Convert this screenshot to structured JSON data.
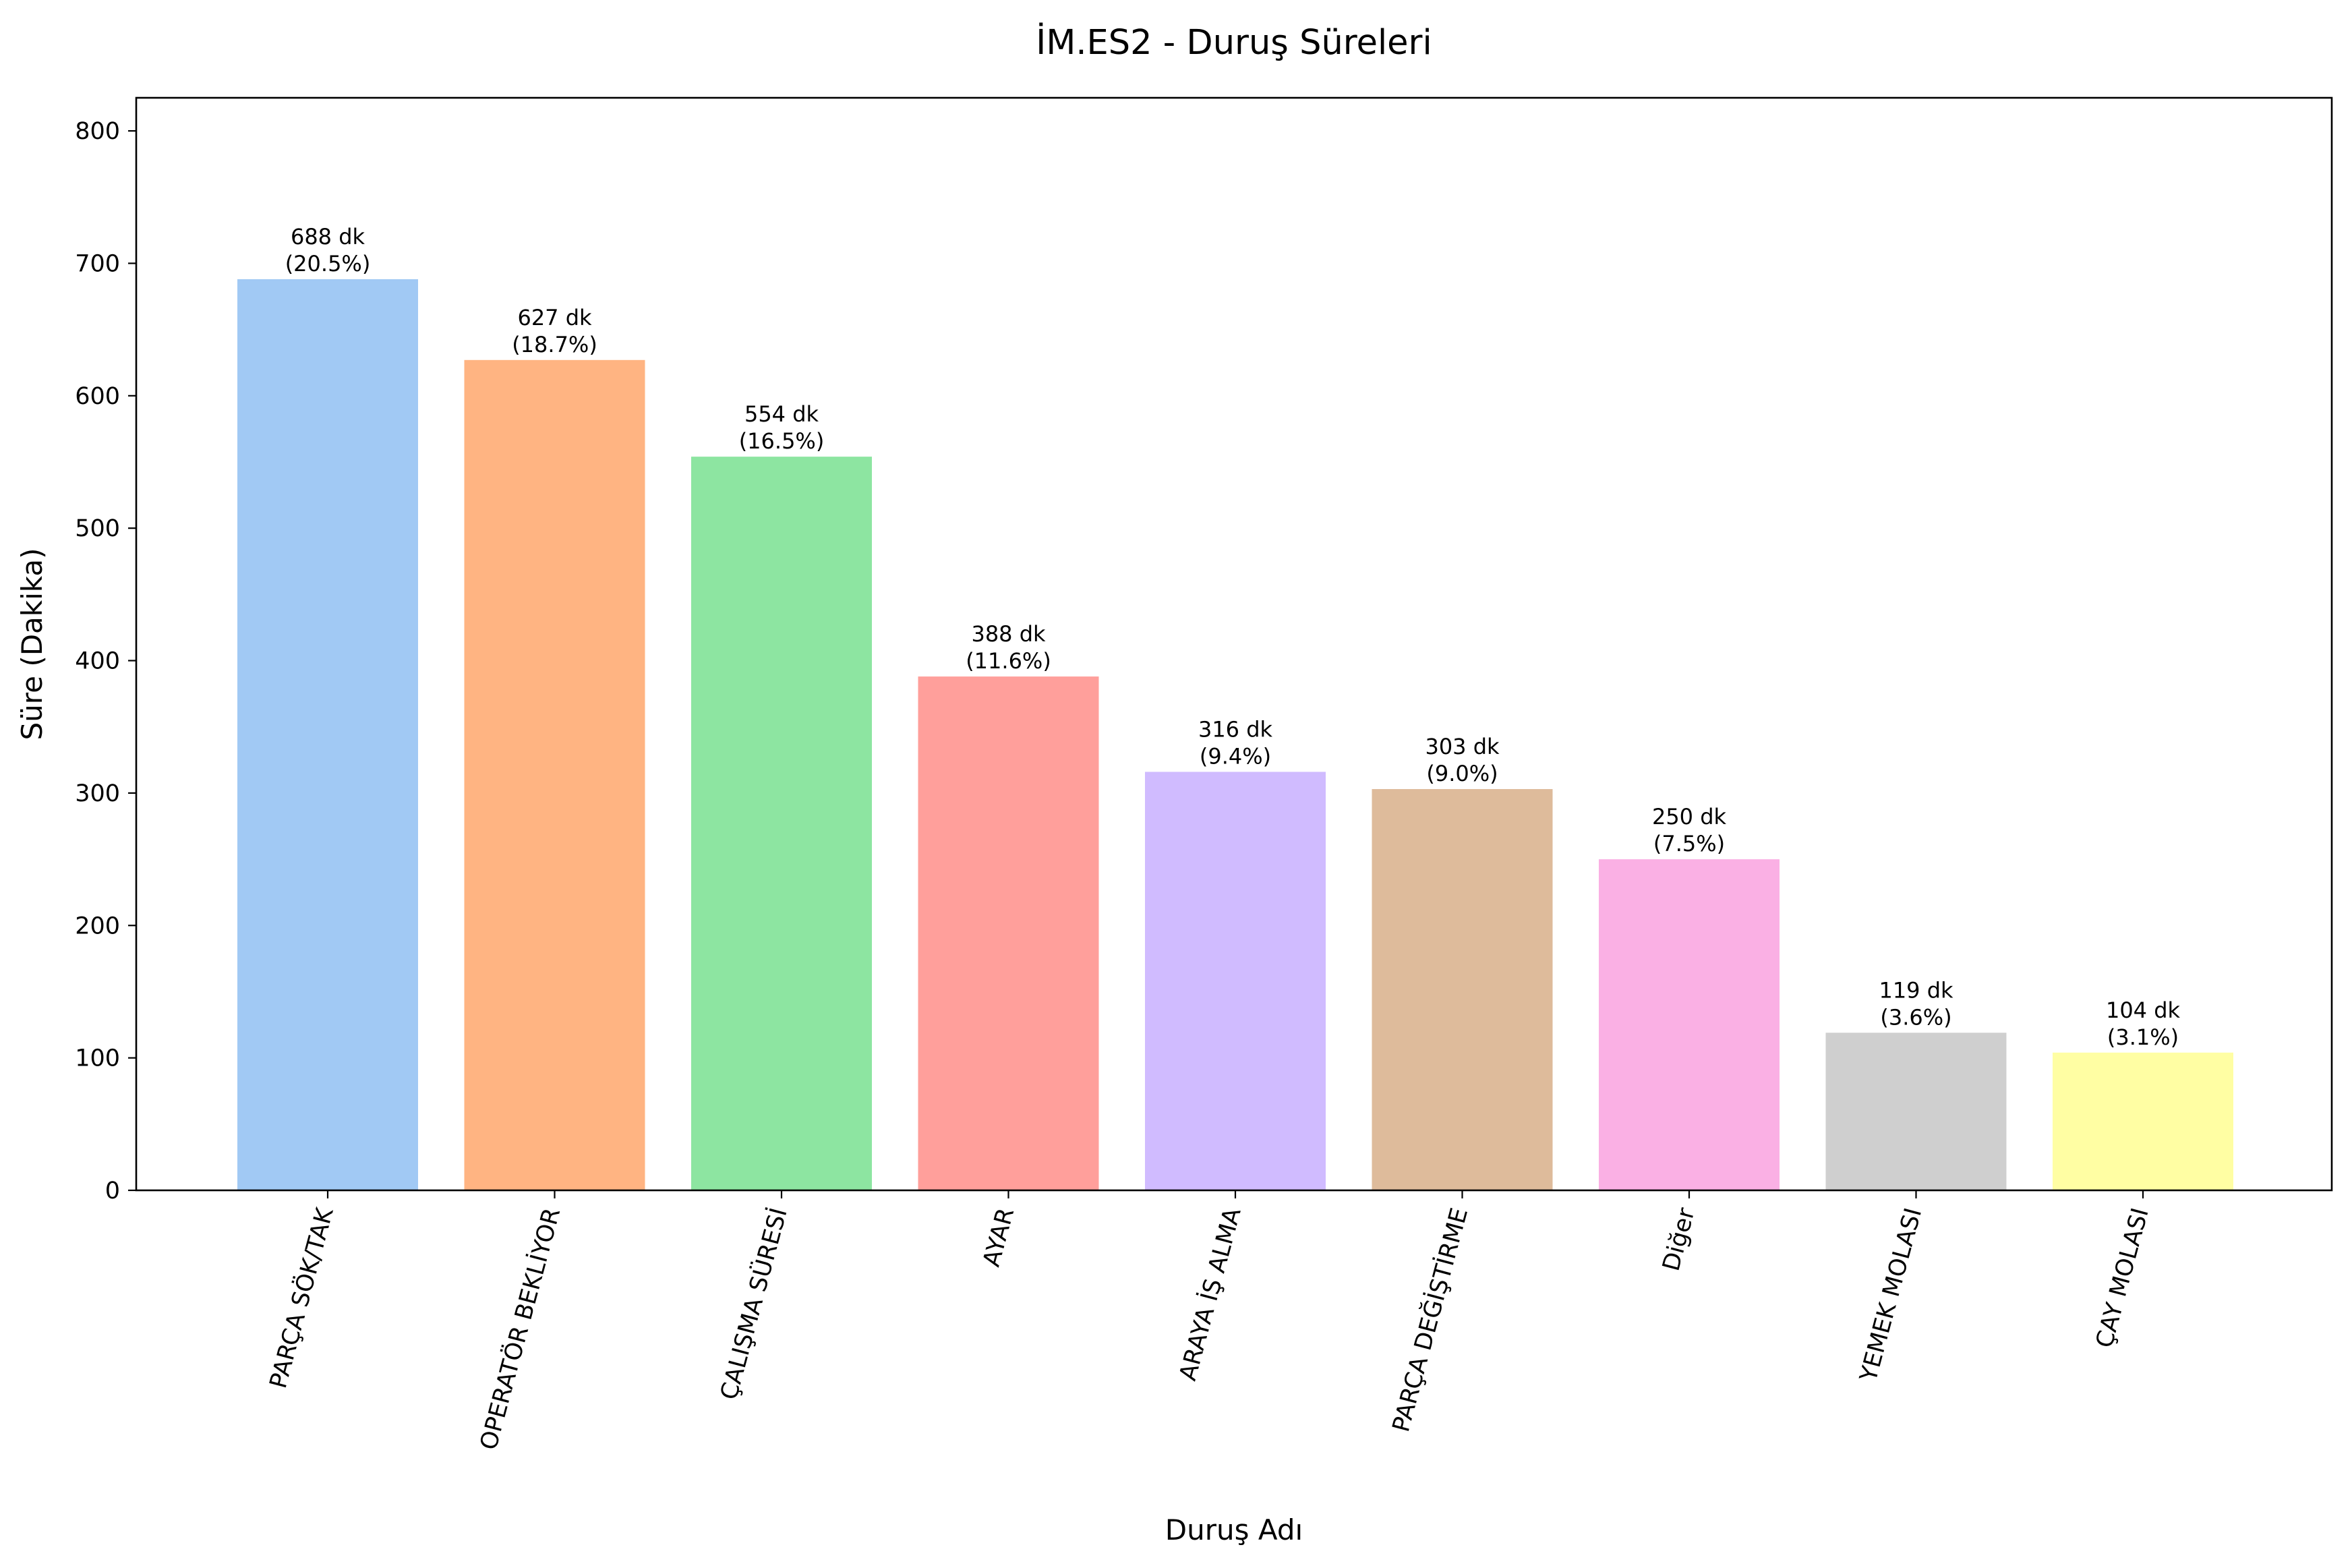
{
  "chart_data": {
    "type": "bar",
    "title": "İM.ES2 - Duruş Süreleri",
    "xlabel": "Duruş Adı",
    "ylabel": "Süre (Dakika)",
    "ylim": [
      0,
      825
    ],
    "yticks": [
      0,
      100,
      200,
      300,
      400,
      500,
      600,
      700,
      800
    ],
    "categories": [
      "PARÇA SÖK/TAK",
      "OPERATÖR BEKLİYOR",
      "ÇALIŞMA SÜRESİ",
      "AYAR",
      "ARAYA İŞ ALMA",
      "PARÇA DEĞİŞTİRME",
      "Diğer",
      "YEMEK MOLASI",
      "ÇAY MOLASI"
    ],
    "values": [
      688,
      627,
      554,
      388,
      316,
      303,
      250,
      119,
      104
    ],
    "value_labels": [
      "688 dk",
      "627 dk",
      "554 dk",
      "388 dk",
      "316 dk",
      "303 dk",
      "250 dk",
      "119 dk",
      "104 dk"
    ],
    "percent_labels": [
      "(20.5%)",
      "(18.7%)",
      "(16.5%)",
      "(11.6%)",
      "(9.4%)",
      "(9.0%)",
      "(7.5%)",
      "(3.6%)",
      "(3.1%)"
    ],
    "colors": [
      "#a1c9f4",
      "#ffb482",
      "#8de5a1",
      "#ff9f9b",
      "#d0bbff",
      "#debb9b",
      "#fab0e4",
      "#cfcfcf",
      "#fffea3"
    ],
    "grid": false,
    "legend": "none",
    "x_tick_rotation": "-75deg"
  }
}
